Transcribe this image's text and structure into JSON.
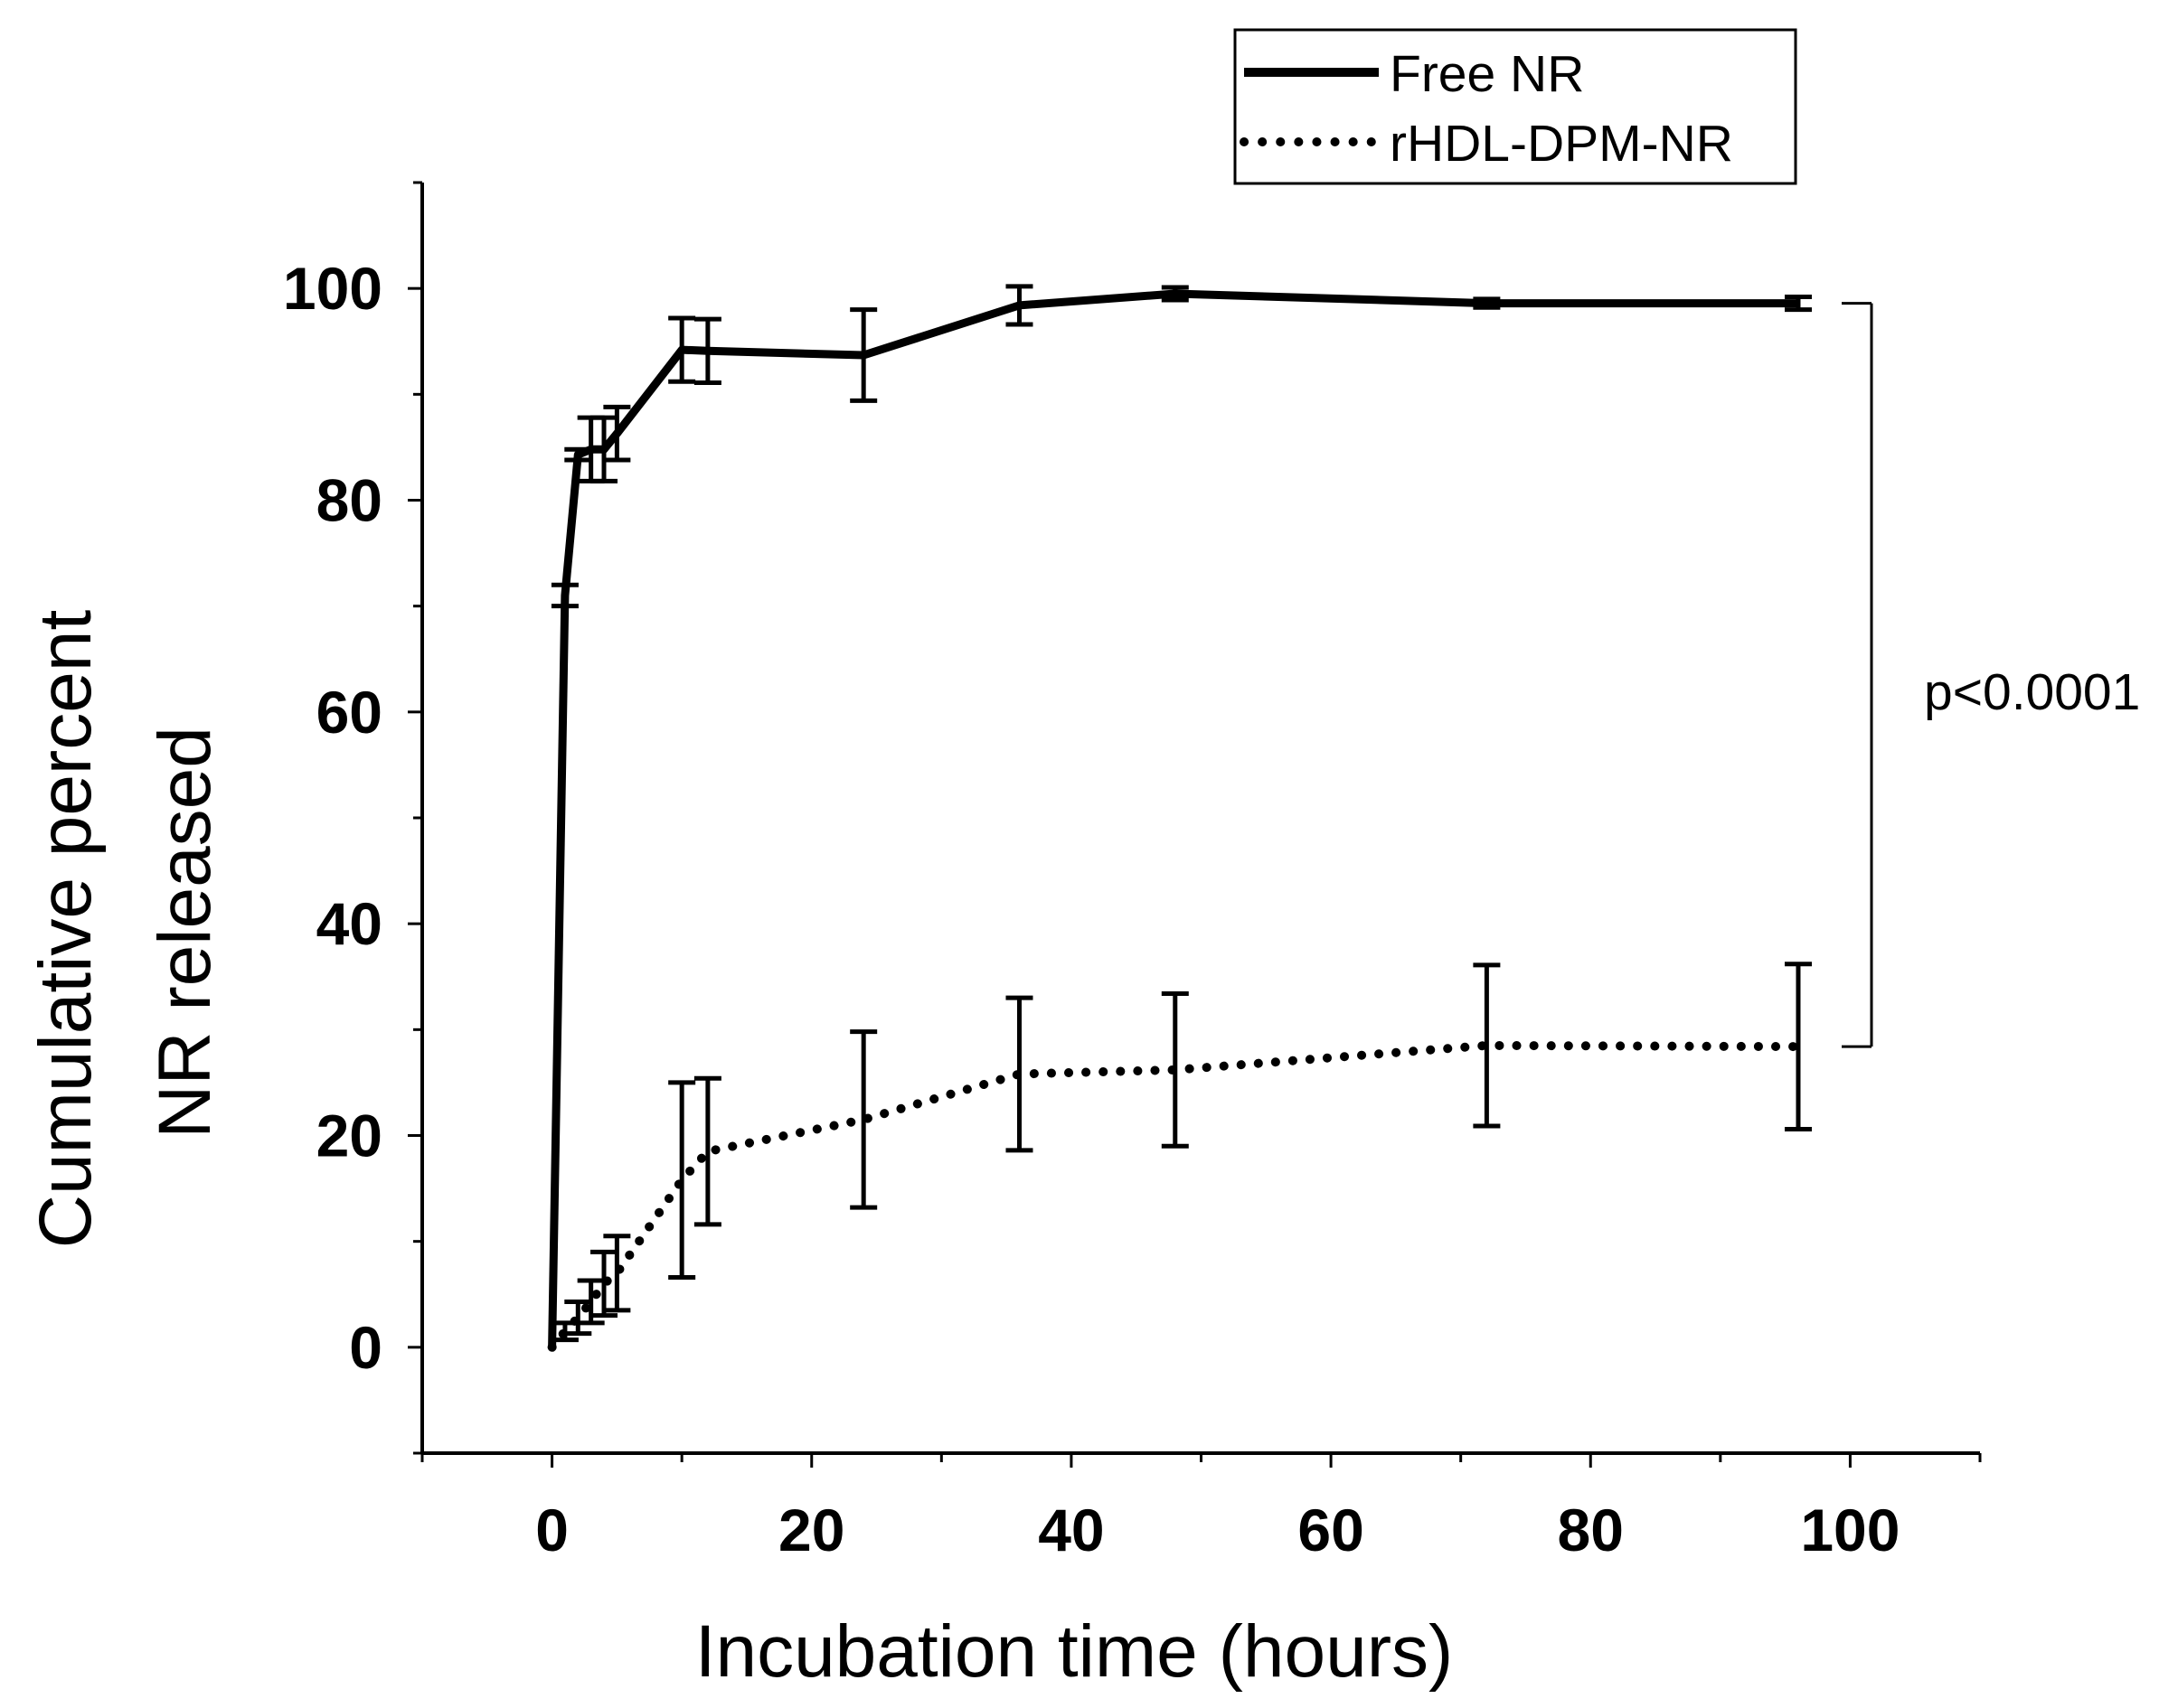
{
  "chart_data": {
    "type": "line",
    "title": "",
    "xlabel": "Incubation time (hours)",
    "ylabel_line1": "Cumulative percent",
    "ylabel_line2": "NR released",
    "xlim": [
      -10,
      110
    ],
    "ylim": [
      -10,
      110
    ],
    "xticks": [
      0,
      20,
      40,
      60,
      80,
      100
    ],
    "yticks": [
      0,
      20,
      40,
      60,
      80,
      100
    ],
    "grid": false,
    "legend_position": "top-right",
    "series": [
      {
        "name": "Free NR",
        "style": "solid",
        "x": [
          0,
          1,
          2,
          3,
          4,
          5,
          10,
          12,
          24,
          36,
          48,
          72,
          96
        ],
        "y": [
          0,
          71,
          84.3,
          84.8,
          84.8,
          86.3,
          94.2,
          94.1,
          93.7,
          98.4,
          99.5,
          98.6,
          98.6
        ],
        "err": [
          0,
          1,
          0.5,
          3,
          3,
          2.5,
          3,
          3,
          4.3,
          1.8,
          0.6,
          0.4,
          0.6
        ]
      },
      {
        "name": "rHDL-DPM-NR",
        "style": "dotted",
        "x": [
          0,
          1,
          2,
          3,
          4,
          5,
          10,
          12,
          24,
          36,
          48,
          72,
          96
        ],
        "y": [
          0,
          1.5,
          2.8,
          4.3,
          6,
          7,
          15.8,
          18.5,
          21.5,
          25.8,
          26.2,
          28.5,
          28.4
        ],
        "err": [
          0,
          0.8,
          1.5,
          2,
          3,
          3.5,
          9.2,
          6.9,
          8.3,
          7.2,
          7.2,
          7.6,
          7.8
        ]
      }
    ],
    "annotation": {
      "text": "p<0.0001",
      "between_y": [
        98.6,
        28.4
      ]
    }
  }
}
